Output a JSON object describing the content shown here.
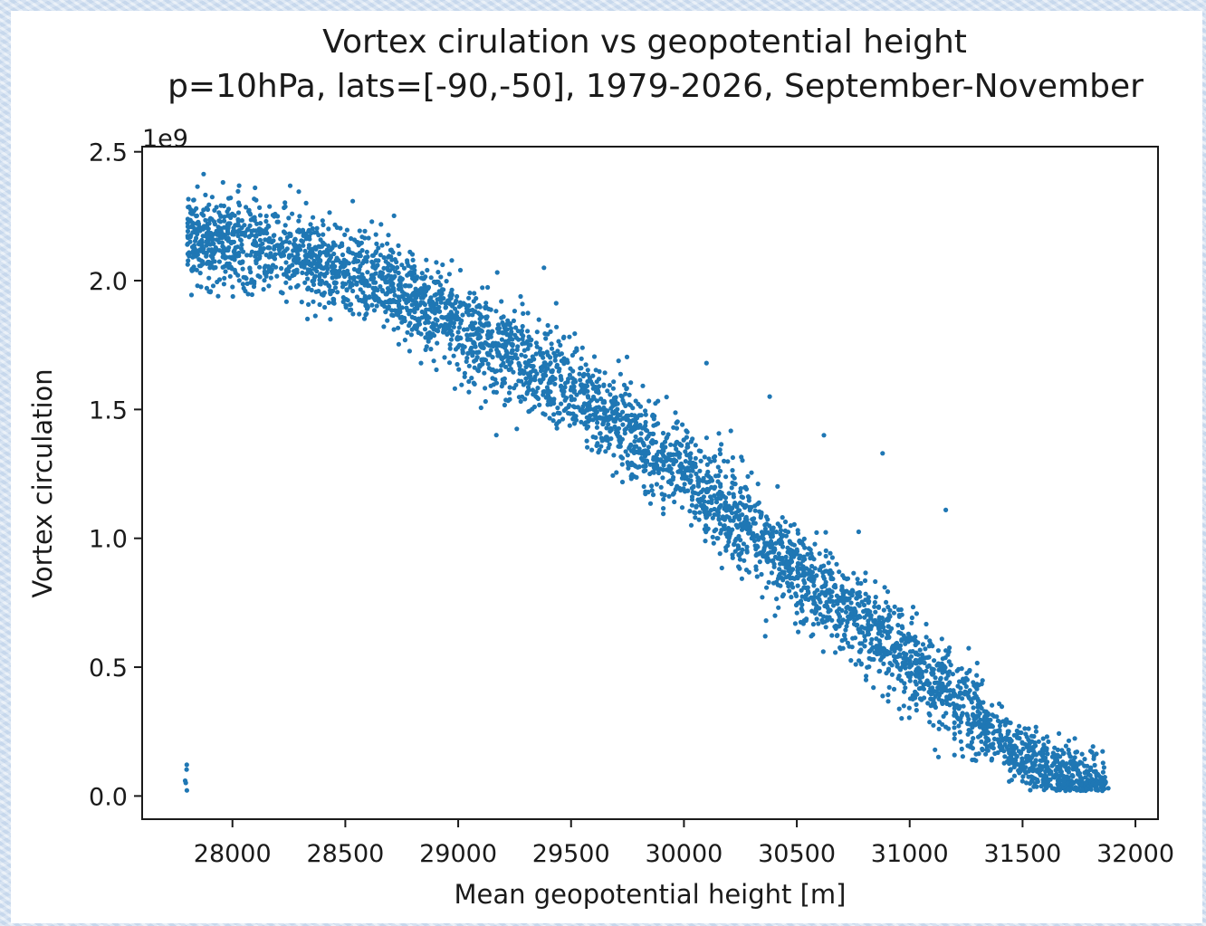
{
  "chart_data": {
    "type": "scatter",
    "title": "Vortex cirulation vs geopotential height",
    "subtitle": "p=10hPa, lats=[-90,-50], 1979-2026, September-November",
    "xlabel": "Mean geopotential height [m]",
    "ylabel": "Vortex circulation",
    "y_offset_label": "1e9",
    "xlim": [
      27600,
      32100
    ],
    "ylim": [
      -0.09,
      2.52
    ],
    "xticks": [
      28000,
      28500,
      29000,
      29500,
      30000,
      30500,
      31000,
      31500,
      32000
    ],
    "xtick_labels": [
      "28000",
      "28500",
      "29000",
      "29500",
      "30000",
      "30500",
      "31000",
      "31500",
      "32000"
    ],
    "yticks": [
      0.0,
      0.5,
      1.0,
      1.5,
      2.0,
      2.5
    ],
    "ytick_labels": [
      "0.0",
      "0.5",
      "1.0",
      "1.5",
      "2.0",
      "2.5"
    ],
    "grid": false,
    "legend": "none",
    "marker_color": "#1f77b4",
    "y_scale": "1e9",
    "series": [
      {
        "points_sample": [
          [
            27800,
            2.14
          ],
          [
            27850,
            2.22
          ],
          [
            27900,
            2.05
          ],
          [
            28000,
            2.18
          ],
          [
            28100,
            2.36
          ],
          [
            28150,
            2.1
          ],
          [
            28200,
            2.25
          ],
          [
            28300,
            2.12
          ],
          [
            28400,
            2.05
          ],
          [
            28500,
            2.02
          ],
          [
            28600,
            1.98
          ],
          [
            28700,
            1.92
          ],
          [
            28800,
            1.95
          ],
          [
            28900,
            1.85
          ],
          [
            29000,
            1.8
          ],
          [
            29100,
            1.75
          ],
          [
            29200,
            1.68
          ],
          [
            29300,
            1.62
          ],
          [
            29400,
            1.55
          ],
          [
            29500,
            1.55
          ],
          [
            29600,
            1.5
          ],
          [
            29700,
            1.42
          ],
          [
            29800,
            1.38
          ],
          [
            29900,
            1.3
          ],
          [
            30000,
            1.25
          ],
          [
            30100,
            1.18
          ],
          [
            30200,
            1.08
          ],
          [
            30300,
            1.0
          ],
          [
            30400,
            0.9
          ],
          [
            30500,
            0.85
          ],
          [
            30600,
            0.78
          ],
          [
            30700,
            0.72
          ],
          [
            30800,
            0.62
          ],
          [
            30900,
            0.55
          ],
          [
            31000,
            0.5
          ],
          [
            31100,
            0.42
          ],
          [
            31200,
            0.35
          ],
          [
            31300,
            0.28
          ],
          [
            31400,
            0.2
          ],
          [
            31500,
            0.12
          ],
          [
            31600,
            0.07
          ],
          [
            31700,
            0.05
          ],
          [
            31800,
            0.08
          ],
          [
            31880,
            0.03
          ],
          [
            30380,
            1.55
          ],
          [
            30620,
            1.4
          ],
          [
            30880,
            1.33
          ],
          [
            31160,
            1.11
          ],
          [
            29380,
            2.05
          ],
          [
            30100,
            1.68
          ],
          [
            31560,
            0.25
          ],
          [
            30360,
            0.62
          ]
        ]
      }
    ]
  }
}
